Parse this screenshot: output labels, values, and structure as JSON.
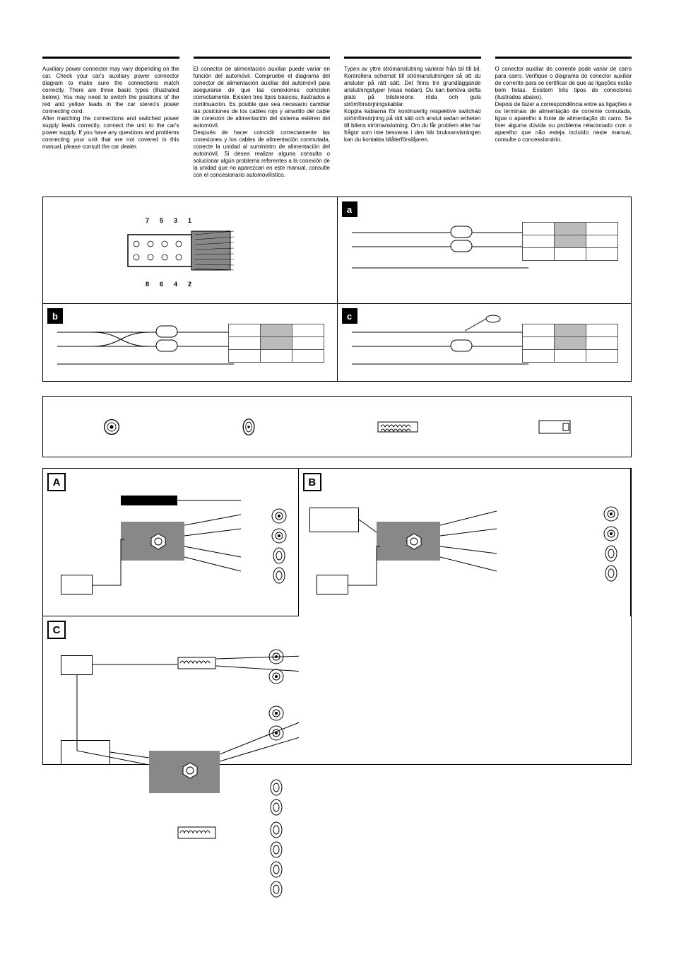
{
  "columns": {
    "en": "Auxiliary power connector may vary depending on the car. Check your car's auxiliary power connector diagram to make sure the connections match correctly. There are three basic types (illustrated below). You may need to switch the positions of the red and yellow leads in the car stereo's power connecting cord.\nAfter matching the connections and switched power supply leads correctly, connect the unit to the car's power supply. If you have any questions and problems connecting your unit that are not covered in this manual, please consult the car dealer.",
    "es": "El conector de alimentación auxiliar puede variar en función del automóvil. Compruebe el diagrama del conector de alimentación auxiliar del automóvil para asegurarse de que las conexiones coinciden correctamente. Existen tres tipos básicos, ilustrados a continuación. Es posible que sea necesario cambiar las posiciones de los cables rojo y amarillo del cable de conexión de alimentación del sistema estéreo del automóvil.\nDespués de hacer coincidir correctamente las conexiones y los cables de alimentación conmutada, conecte la unidad al suministro de alimentación del automóvil. Si desea realizar alguna consulta o solucionar algún problema referentes a la conexión de la unidad que no aparezcan en este manual, consulte con el concesionario automovilístico.",
    "sv": "Typen av yttre strömanslutning varierar från bil till bil. Kontrollera schemat till strömanslutningen så att du ansluter på rätt sätt. Det finns tre grundläggande anslutningstyper (visas nedan). Du kan behöva skifta plats på bilstereons röda och gula strömförsörjningskablar.\nKoppla kablarna för kontinuerlig respektive switchad strömförsörjning på rätt sätt och anslut sedan enheten till bilens strömanslutning. Om du får problem eller har frågor som inte besvaras i den här bruksanvisningen kan du kontakta bilåterförsäljaren.",
    "pt": "O conector auxiliar de corrente pode variar de carro para carro. Verifique o diagrama do conector auxiliar de corrente para se certificar de que as ligações estão bem feitas. Existem três tipos de conectores (ilustrados abaixo).\nDepois de fazer a correspondência entre as ligações e os terminais de alimentação de corrente comutada, ligue o aparelho à fonte de alimentação do carro. Se tiver alguma dúvida ou problema relacionado com o aparelho que não esteja incluído neste manual, consulte o concessionário."
  },
  "connector": {
    "badges": {
      "a": "a",
      "b": "b",
      "c": "c"
    },
    "pins_top": [
      "7",
      "5",
      "3",
      "1"
    ],
    "pins_bottom": [
      "8",
      "6",
      "4",
      "2"
    ]
  },
  "systems": {
    "badge_a": "A",
    "badge_b": "B",
    "badge_c": "C"
  },
  "colors": {
    "frame": "#000000",
    "grey_mid": "#888888",
    "grey_lt": "#bbbbbb",
    "line": "#555555"
  }
}
